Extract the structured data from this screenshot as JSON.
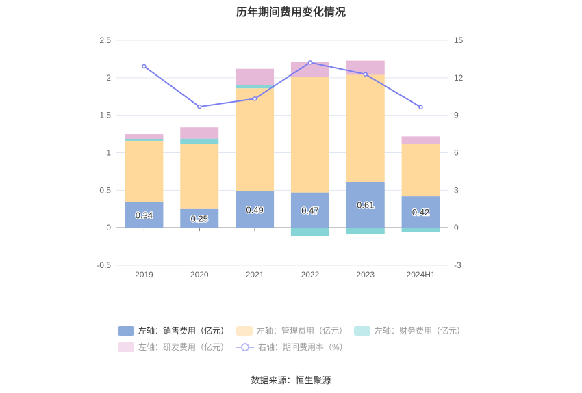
{
  "title": "历年期间费用变化情况",
  "source": "数据来源：恒生聚源",
  "chart_data": {
    "type": "bar",
    "stacked": true,
    "categories": [
      "2019",
      "2020",
      "2021",
      "2022",
      "2023",
      "2024H1"
    ],
    "left_axis": {
      "ylim": [
        -0.5,
        2.5
      ],
      "ticks": [
        "-0.5",
        "0",
        "0.5",
        "1",
        "1.5",
        "2",
        "2.5"
      ]
    },
    "right_axis": {
      "ylim": [
        -3,
        15
      ],
      "ticks": [
        "-3",
        "0",
        "3",
        "6",
        "9",
        "12",
        "15"
      ]
    },
    "grid": true,
    "legend_placement": "bottom",
    "series": [
      {
        "name": "左轴：销售费用（亿元）",
        "type": "bar",
        "axis": "left",
        "color": "#8eacdb",
        "values": [
          0.34,
          0.25,
          0.49,
          0.47,
          0.61,
          0.42
        ],
        "labels": [
          "0.34",
          "0.25",
          "0.49",
          "0.47",
          "0.61",
          "0.42"
        ]
      },
      {
        "name": "左轴：管理费用（亿元）",
        "type": "bar",
        "axis": "left",
        "color": "#ffd99b",
        "legend_color": "#ffe9c8",
        "values": [
          0.82,
          0.87,
          1.37,
          1.54,
          1.43,
          0.7
        ]
      },
      {
        "name": "左轴：财务费用（亿元）",
        "type": "bar",
        "axis": "left",
        "color": "#86d5d6",
        "legend_color": "#c0eaeb",
        "values": [
          0.02,
          0.07,
          0.04,
          -0.11,
          -0.09,
          -0.06
        ]
      },
      {
        "name": "左轴：研发费用（亿元）",
        "type": "bar",
        "axis": "left",
        "color": "#e6b9d9",
        "legend_color": "#f3dcec",
        "values": [
          0.07,
          0.15,
          0.22,
          0.2,
          0.19,
          0.1
        ]
      },
      {
        "name": "右轴：期间费用率（%）",
        "type": "line",
        "axis": "right",
        "color": "#7b7ff0",
        "values": [
          12.92,
          9.69,
          10.33,
          13.23,
          12.28,
          9.65
        ]
      }
    ]
  }
}
